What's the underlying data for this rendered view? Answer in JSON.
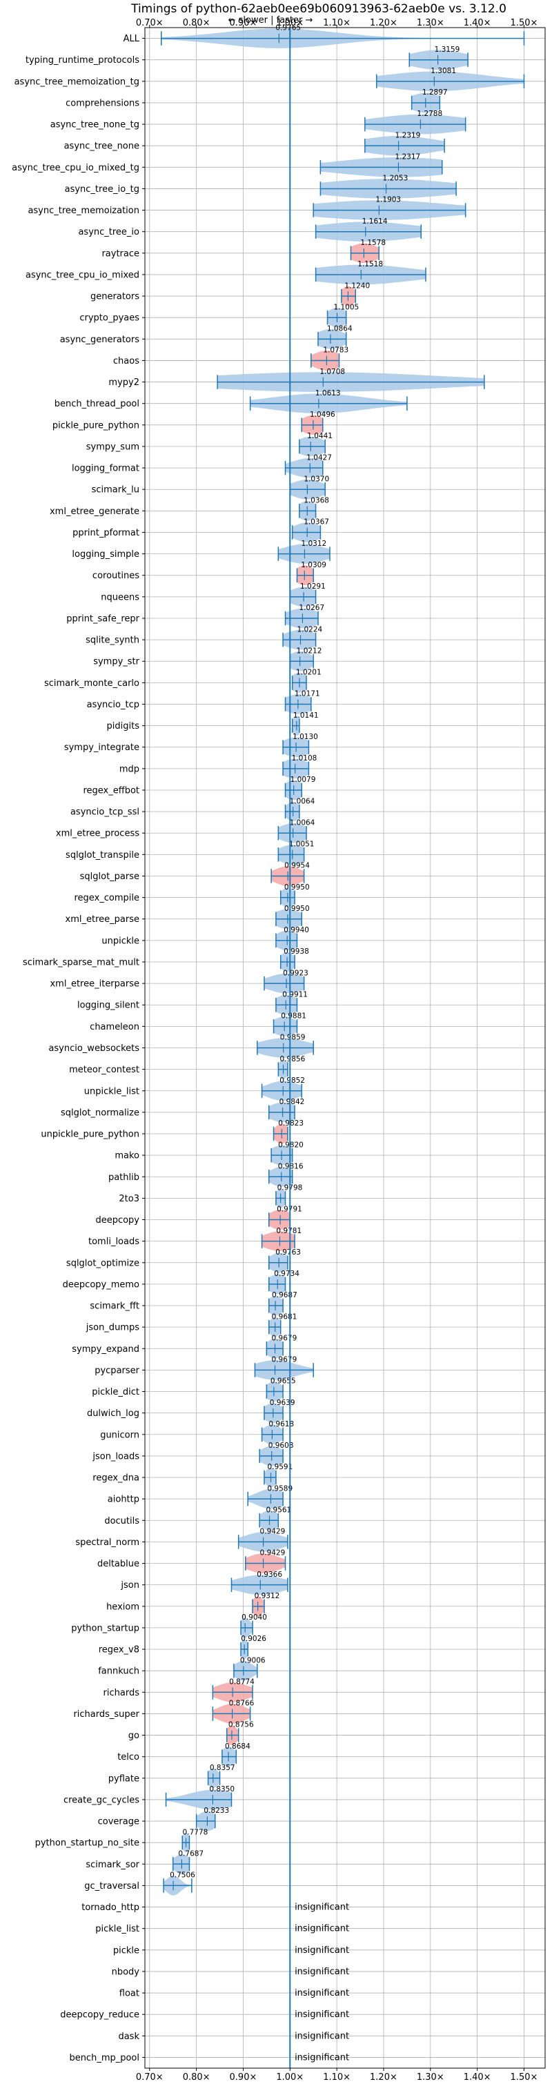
{
  "chart_data": {
    "type": "violin",
    "title": "Timings of python-62aeb0ee69b060913963-62aeb0e vs. 3.12.0",
    "subtitle": "← slower | faster →",
    "xlim": [
      0.69,
      1.545
    ],
    "xticks": [
      0.7,
      0.8,
      0.9,
      1.0,
      1.1,
      1.2,
      1.3,
      1.4,
      1.5
    ],
    "xtick_labels": [
      "0.70×",
      "0.80×",
      "0.90×",
      "1.00×",
      "1.10×",
      "1.20×",
      "1.30×",
      "1.40×",
      "1.50×"
    ],
    "reference_x": 1.0,
    "grid": true,
    "benchmarks": [
      {
        "name": "ALL",
        "value": 0.9765,
        "label": "0.9765",
        "min": 0.725,
        "max": 1.5,
        "width": 0.12,
        "highlight": false
      },
      {
        "name": "typing_runtime_protocols",
        "value": 1.3159,
        "label": "1.3159",
        "min": 1.255,
        "max": 1.38,
        "width": 0.06,
        "highlight": false
      },
      {
        "name": "async_tree_memoization_tg",
        "value": 1.3081,
        "label": "1.3081",
        "min": 1.185,
        "max": 1.5,
        "width": 0.11,
        "highlight": false
      },
      {
        "name": "comprehensions",
        "value": 1.2897,
        "label": "1.2897",
        "min": 1.26,
        "max": 1.32,
        "width": 0.035,
        "highlight": false
      },
      {
        "name": "async_tree_none_tg",
        "value": 1.2788,
        "label": "1.2788",
        "min": 1.16,
        "max": 1.375,
        "width": 0.1,
        "highlight": false
      },
      {
        "name": "async_tree_none",
        "value": 1.2319,
        "label": "1.2319",
        "min": 1.16,
        "max": 1.33,
        "width": 0.08,
        "highlight": false
      },
      {
        "name": "async_tree_cpu_io_mixed_tg",
        "value": 1.2317,
        "label": "1.2317",
        "min": 1.065,
        "max": 1.325,
        "width": 0.13,
        "highlight": false
      },
      {
        "name": "async_tree_io_tg",
        "value": 1.2053,
        "label": "1.2053",
        "min": 1.065,
        "max": 1.355,
        "width": 0.14,
        "highlight": false
      },
      {
        "name": "async_tree_memoization",
        "value": 1.1903,
        "label": "1.1903",
        "min": 1.05,
        "max": 1.375,
        "width": 0.15,
        "highlight": false
      },
      {
        "name": "async_tree_io",
        "value": 1.1614,
        "label": "1.1614",
        "min": 1.055,
        "max": 1.28,
        "width": 0.11,
        "highlight": false
      },
      {
        "name": "raytrace",
        "value": 1.1578,
        "label": "1.1578",
        "min": 1.13,
        "max": 1.19,
        "width": 0.03,
        "highlight": true
      },
      {
        "name": "async_tree_cpu_io_mixed",
        "value": 1.1518,
        "label": "1.1518",
        "min": 1.055,
        "max": 1.29,
        "width": 0.11,
        "highlight": false
      },
      {
        "name": "generators",
        "value": 1.124,
        "label": "1.1240",
        "min": 1.11,
        "max": 1.14,
        "width": 0.015,
        "highlight": true
      },
      {
        "name": "crypto_pyaes",
        "value": 1.1005,
        "label": "1.1005",
        "min": 1.08,
        "max": 1.12,
        "width": 0.02,
        "highlight": false
      },
      {
        "name": "async_generators",
        "value": 1.0864,
        "label": "1.0864",
        "min": 1.06,
        "max": 1.12,
        "width": 0.03,
        "highlight": false
      },
      {
        "name": "chaos",
        "value": 1.0783,
        "label": "1.0783",
        "min": 1.045,
        "max": 1.105,
        "width": 0.03,
        "highlight": true
      },
      {
        "name": "mypy2",
        "value": 1.0708,
        "label": "1.0708",
        "min": 0.845,
        "max": 1.415,
        "width": 0.25,
        "highlight": false
      },
      {
        "name": "bench_thread_pool",
        "value": 1.0613,
        "label": "1.0613",
        "min": 0.915,
        "max": 1.25,
        "width": 0.1,
        "highlight": false
      },
      {
        "name": "pickle_pure_python",
        "value": 1.0496,
        "label": "1.0496",
        "min": 1.025,
        "max": 1.07,
        "width": 0.025,
        "highlight": true
      },
      {
        "name": "sympy_sum",
        "value": 1.0441,
        "label": "1.0441",
        "min": 1.02,
        "max": 1.075,
        "width": 0.03,
        "highlight": false
      },
      {
        "name": "logging_format",
        "value": 1.0427,
        "label": "1.0427",
        "min": 0.99,
        "max": 1.07,
        "width": 0.04,
        "highlight": false
      },
      {
        "name": "scimark_lu",
        "value": 1.037,
        "label": "1.0370",
        "min": 1.0,
        "max": 1.075,
        "width": 0.035,
        "highlight": false
      },
      {
        "name": "xml_etree_generate",
        "value": 1.0368,
        "label": "1.0368",
        "min": 1.02,
        "max": 1.055,
        "width": 0.02,
        "highlight": false
      },
      {
        "name": "pprint_pformat",
        "value": 1.0367,
        "label": "1.0367",
        "min": 1.005,
        "max": 1.065,
        "width": 0.03,
        "highlight": false
      },
      {
        "name": "logging_simple",
        "value": 1.0312,
        "label": "1.0312",
        "min": 0.975,
        "max": 1.085,
        "width": 0.045,
        "highlight": false
      },
      {
        "name": "coroutines",
        "value": 1.0309,
        "label": "1.0309",
        "min": 1.015,
        "max": 1.05,
        "width": 0.02,
        "highlight": true
      },
      {
        "name": "nqueens",
        "value": 1.0291,
        "label": "1.0291",
        "min": 1.0,
        "max": 1.055,
        "width": 0.03,
        "highlight": false
      },
      {
        "name": "pprint_safe_repr",
        "value": 1.0267,
        "label": "1.0267",
        "min": 0.99,
        "max": 1.06,
        "width": 0.035,
        "highlight": false
      },
      {
        "name": "sqlite_synth",
        "value": 1.0224,
        "label": "1.0224",
        "min": 0.985,
        "max": 1.055,
        "width": 0.035,
        "highlight": false
      },
      {
        "name": "sympy_str",
        "value": 1.0212,
        "label": "1.0212",
        "min": 1.0,
        "max": 1.05,
        "width": 0.025,
        "highlight": false
      },
      {
        "name": "scimark_monte_carlo",
        "value": 1.0201,
        "label": "1.0201",
        "min": 1.005,
        "max": 1.035,
        "width": 0.02,
        "highlight": false
      },
      {
        "name": "asyncio_tcp",
        "value": 1.0171,
        "label": "1.0171",
        "min": 0.99,
        "max": 1.045,
        "width": 0.03,
        "highlight": false
      },
      {
        "name": "pidigits",
        "value": 1.0141,
        "label": "1.0141",
        "min": 1.005,
        "max": 1.02,
        "width": 0.01,
        "highlight": false
      },
      {
        "name": "sympy_integrate",
        "value": 1.013,
        "label": "1.0130",
        "min": 0.985,
        "max": 1.04,
        "width": 0.03,
        "highlight": false
      },
      {
        "name": "mdp",
        "value": 1.0108,
        "label": "1.0108",
        "min": 0.985,
        "max": 1.04,
        "width": 0.03,
        "highlight": false
      },
      {
        "name": "regex_effbot",
        "value": 1.0079,
        "label": "1.0079",
        "min": 0.99,
        "max": 1.025,
        "width": 0.02,
        "highlight": false
      },
      {
        "name": "asyncio_tcp_ssl",
        "value": 1.0064,
        "label": "1.0064",
        "min": 0.99,
        "max": 1.02,
        "width": 0.015,
        "highlight": false
      },
      {
        "name": "xml_etree_process",
        "value": 1.0064,
        "label": "1.0064",
        "min": 0.975,
        "max": 1.035,
        "width": 0.03,
        "highlight": false
      },
      {
        "name": "sqlglot_transpile",
        "value": 1.0051,
        "label": "1.0051",
        "min": 0.975,
        "max": 1.03,
        "width": 0.03,
        "highlight": false
      },
      {
        "name": "sqlglot_parse",
        "value": 0.9954,
        "label": "0.9954",
        "min": 0.96,
        "max": 1.03,
        "width": 0.03,
        "highlight": true
      },
      {
        "name": "regex_compile",
        "value": 0.995,
        "label": "0.9950",
        "min": 0.98,
        "max": 1.01,
        "width": 0.015,
        "highlight": false
      },
      {
        "name": "xml_etree_parse",
        "value": 0.995,
        "label": "0.9950",
        "min": 0.97,
        "max": 1.025,
        "width": 0.03,
        "highlight": false
      },
      {
        "name": "unpickle",
        "value": 0.994,
        "label": "0.9940",
        "min": 0.97,
        "max": 1.015,
        "width": 0.025,
        "highlight": false
      },
      {
        "name": "scimark_sparse_mat_mult",
        "value": 0.9938,
        "label": "0.9938",
        "min": 0.98,
        "max": 1.01,
        "width": 0.015,
        "highlight": false
      },
      {
        "name": "xml_etree_iterparse",
        "value": 0.9923,
        "label": "0.9923",
        "min": 0.945,
        "max": 1.03,
        "width": 0.04,
        "highlight": false
      },
      {
        "name": "logging_silent",
        "value": 0.9911,
        "label": "0.9911",
        "min": 0.97,
        "max": 1.015,
        "width": 0.025,
        "highlight": false
      },
      {
        "name": "chameleon",
        "value": 0.9881,
        "label": "0.9881",
        "min": 0.965,
        "max": 1.015,
        "width": 0.025,
        "highlight": false
      },
      {
        "name": "asyncio_websockets",
        "value": 0.9859,
        "label": "0.9859",
        "min": 0.93,
        "max": 1.05,
        "width": 0.05,
        "highlight": false
      },
      {
        "name": "meteor_contest",
        "value": 0.9856,
        "label": "0.9856",
        "min": 0.975,
        "max": 0.995,
        "width": 0.01,
        "highlight": false
      },
      {
        "name": "unpickle_list",
        "value": 0.9852,
        "label": "0.9852",
        "min": 0.94,
        "max": 1.025,
        "width": 0.035,
        "highlight": false
      },
      {
        "name": "sqlglot_normalize",
        "value": 0.9842,
        "label": "0.9842",
        "min": 0.955,
        "max": 1.01,
        "width": 0.03,
        "highlight": false
      },
      {
        "name": "unpickle_pure_python",
        "value": 0.9823,
        "label": "0.9823",
        "min": 0.965,
        "max": 0.995,
        "width": 0.015,
        "highlight": true
      },
      {
        "name": "mako",
        "value": 0.982,
        "label": "0.9820",
        "min": 0.96,
        "max": 1.005,
        "width": 0.025,
        "highlight": false
      },
      {
        "name": "pathlib",
        "value": 0.9816,
        "label": "0.9816",
        "min": 0.955,
        "max": 1.005,
        "width": 0.025,
        "highlight": false
      },
      {
        "name": "2to3",
        "value": 0.9798,
        "label": "0.9798",
        "min": 0.97,
        "max": 0.99,
        "width": 0.01,
        "highlight": false
      },
      {
        "name": "deepcopy",
        "value": 0.9791,
        "label": "0.9791",
        "min": 0.955,
        "max": 1.0,
        "width": 0.025,
        "highlight": true
      },
      {
        "name": "tomli_loads",
        "value": 0.9781,
        "label": "0.9781",
        "min": 0.94,
        "max": 1.01,
        "width": 0.035,
        "highlight": true
      },
      {
        "name": "sqlglot_optimize",
        "value": 0.9763,
        "label": "0.9763",
        "min": 0.955,
        "max": 0.995,
        "width": 0.02,
        "highlight": false
      },
      {
        "name": "deepcopy_memo",
        "value": 0.9734,
        "label": "0.9734",
        "min": 0.955,
        "max": 0.99,
        "width": 0.02,
        "highlight": false
      },
      {
        "name": "scimark_fft",
        "value": 0.9687,
        "label": "0.9687",
        "min": 0.955,
        "max": 0.985,
        "width": 0.015,
        "highlight": false
      },
      {
        "name": "json_dumps",
        "value": 0.9681,
        "label": "0.9681",
        "min": 0.955,
        "max": 0.98,
        "width": 0.012,
        "highlight": false
      },
      {
        "name": "sympy_expand",
        "value": 0.9679,
        "label": "0.9679",
        "min": 0.95,
        "max": 0.985,
        "width": 0.018,
        "highlight": false
      },
      {
        "name": "pycparser",
        "value": 0.9679,
        "label": "0.9679",
        "min": 0.925,
        "max": 1.05,
        "width": 0.045,
        "highlight": false
      },
      {
        "name": "pickle_dict",
        "value": 0.9655,
        "label": "0.9655",
        "min": 0.95,
        "max": 0.985,
        "width": 0.018,
        "highlight": false
      },
      {
        "name": "dulwich_log",
        "value": 0.9639,
        "label": "0.9639",
        "min": 0.945,
        "max": 0.985,
        "width": 0.02,
        "highlight": false
      },
      {
        "name": "gunicorn",
        "value": 0.9618,
        "label": "0.9618",
        "min": 0.94,
        "max": 0.985,
        "width": 0.02,
        "highlight": false
      },
      {
        "name": "json_loads",
        "value": 0.9608,
        "label": "0.9608",
        "min": 0.935,
        "max": 0.985,
        "width": 0.025,
        "highlight": false
      },
      {
        "name": "regex_dna",
        "value": 0.9591,
        "label": "0.9591",
        "min": 0.945,
        "max": 0.97,
        "width": 0.012,
        "highlight": false
      },
      {
        "name": "aiohttp",
        "value": 0.9589,
        "label": "0.9589",
        "min": 0.91,
        "max": 0.985,
        "width": 0.03,
        "highlight": false
      },
      {
        "name": "docutils",
        "value": 0.9561,
        "label": "0.9561",
        "min": 0.935,
        "max": 0.975,
        "width": 0.02,
        "highlight": false
      },
      {
        "name": "spectral_norm",
        "value": 0.9429,
        "label": "0.9429",
        "min": 0.89,
        "max": 0.995,
        "width": 0.04,
        "highlight": false
      },
      {
        "name": "deltablue",
        "value": 0.9429,
        "label": "0.9429",
        "min": 0.905,
        "max": 0.99,
        "width": 0.035,
        "highlight": true
      },
      {
        "name": "json",
        "value": 0.9366,
        "label": "0.9366",
        "min": 0.875,
        "max": 0.995,
        "width": 0.05,
        "highlight": false
      },
      {
        "name": "hexiom",
        "value": 0.9312,
        "label": "0.9312",
        "min": 0.92,
        "max": 0.945,
        "width": 0.012,
        "highlight": true
      },
      {
        "name": "python_startup",
        "value": 0.904,
        "label": "0.9040",
        "min": 0.895,
        "max": 0.92,
        "width": 0.012,
        "highlight": false
      },
      {
        "name": "regex_v8",
        "value": 0.9026,
        "label": "0.9026",
        "min": 0.895,
        "max": 0.91,
        "width": 0.008,
        "highlight": false
      },
      {
        "name": "fannkuch",
        "value": 0.9006,
        "label": "0.9006",
        "min": 0.88,
        "max": 0.93,
        "width": 0.02,
        "highlight": false
      },
      {
        "name": "richards",
        "value": 0.8774,
        "label": "0.8774",
        "min": 0.835,
        "max": 0.92,
        "width": 0.035,
        "highlight": true
      },
      {
        "name": "richards_super",
        "value": 0.8766,
        "label": "0.8766",
        "min": 0.835,
        "max": 0.915,
        "width": 0.03,
        "highlight": true
      },
      {
        "name": "go",
        "value": 0.8756,
        "label": "0.8756",
        "min": 0.865,
        "max": 0.89,
        "width": 0.012,
        "highlight": true
      },
      {
        "name": "telco",
        "value": 0.8684,
        "label": "0.8684",
        "min": 0.855,
        "max": 0.885,
        "width": 0.015,
        "highlight": false
      },
      {
        "name": "pyflate",
        "value": 0.8357,
        "label": "0.8357",
        "min": 0.825,
        "max": 0.85,
        "width": 0.012,
        "highlight": false
      },
      {
        "name": "create_gc_cycles",
        "value": 0.835,
        "label": "0.8350",
        "min": 0.735,
        "max": 0.875,
        "width": 0.05,
        "highlight": false
      },
      {
        "name": "coverage",
        "value": 0.8233,
        "label": "0.8233",
        "min": 0.8,
        "max": 0.84,
        "width": 0.02,
        "highlight": false
      },
      {
        "name": "python_startup_no_site",
        "value": 0.7778,
        "label": "0.7778",
        "min": 0.77,
        "max": 0.785,
        "width": 0.008,
        "highlight": false
      },
      {
        "name": "scimark_sor",
        "value": 0.7687,
        "label": "0.7687",
        "min": 0.75,
        "max": 0.785,
        "width": 0.017,
        "highlight": false
      },
      {
        "name": "gc_traversal",
        "value": 0.7506,
        "label": "0.7506",
        "min": 0.73,
        "max": 0.79,
        "width": 0.015,
        "highlight": false
      },
      {
        "name": "tornado_http",
        "value": null,
        "label": "insignificant",
        "highlight": false
      },
      {
        "name": "pickle_list",
        "value": null,
        "label": "insignificant",
        "highlight": false
      },
      {
        "name": "pickle",
        "value": null,
        "label": "insignificant",
        "highlight": false
      },
      {
        "name": "nbody",
        "value": null,
        "label": "insignificant",
        "highlight": false
      },
      {
        "name": "float",
        "value": null,
        "label": "insignificant",
        "highlight": false
      },
      {
        "name": "deepcopy_reduce",
        "value": null,
        "label": "insignificant",
        "highlight": false
      },
      {
        "name": "dask",
        "value": null,
        "label": "insignificant",
        "highlight": false
      },
      {
        "name": "bench_mp_pool",
        "value": null,
        "label": "insignificant",
        "highlight": false
      }
    ]
  },
  "colors": {
    "violin_normal": "#a8c8e6",
    "violin_highlight": "#f4a6a6",
    "line": "#1f77b4",
    "grid": "#b0b0b0",
    "axis": "#000000"
  }
}
